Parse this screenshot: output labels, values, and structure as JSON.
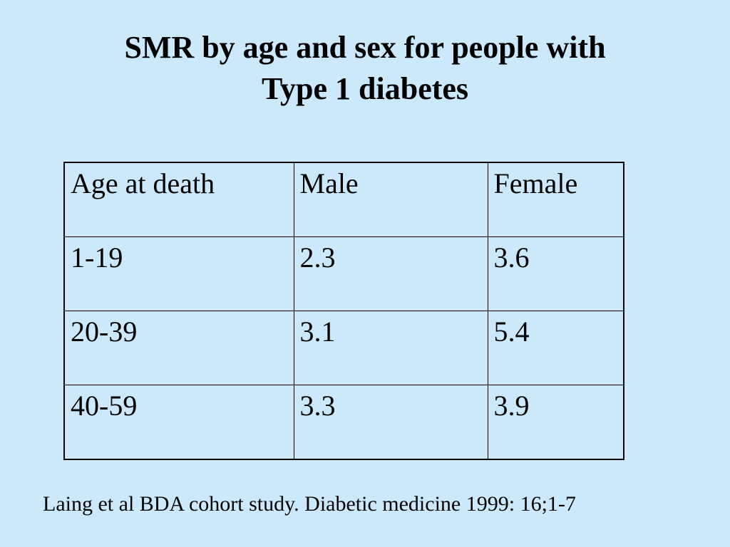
{
  "slide": {
    "title_line1": "SMR by age and sex for people with",
    "title_line2": "Type 1 diabetes",
    "background_color": "#cce9fc",
    "citation": "Laing et al BDA cohort study. Diabetic medicine 1999: 16;1-7"
  },
  "table": {
    "headers": [
      "Age at death",
      "Male",
      "Female"
    ],
    "rows": [
      [
        "1-19",
        "2.3",
        "3.6"
      ],
      [
        "20-39",
        "3.1",
        "5.4"
      ],
      [
        "40-59",
        "3.3",
        "3.9"
      ]
    ]
  }
}
